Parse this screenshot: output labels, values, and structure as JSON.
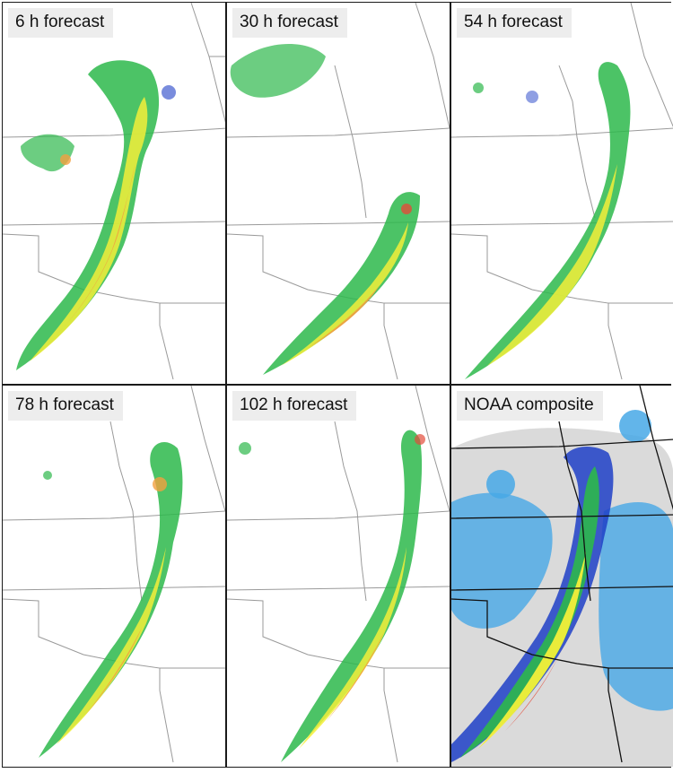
{
  "figure": {
    "panels": [
      {
        "id": "p1",
        "label": "6 h forecast"
      },
      {
        "id": "p2",
        "label": "30 h forecast"
      },
      {
        "id": "p3",
        "label": "54 h forecast"
      },
      {
        "id": "p4",
        "label": "78 h forecast"
      },
      {
        "id": "p5",
        "label": "102 h forecast"
      },
      {
        "id": "p6",
        "label": "NOAA composite"
      }
    ]
  },
  "colors": {
    "background": "#ffffff",
    "state_border": "#9a9a9a",
    "composite_border": "#111111",
    "reflectivity_light": "#d3d3d3",
    "reflectivity_lightblue": "#47a8e6",
    "reflectivity_blue": "#1f3fc7",
    "reflectivity_green": "#2db84b",
    "reflectivity_yellow": "#f3ef3a",
    "reflectivity_orange": "#f2a040",
    "reflectivity_red": "#e34b3a"
  }
}
